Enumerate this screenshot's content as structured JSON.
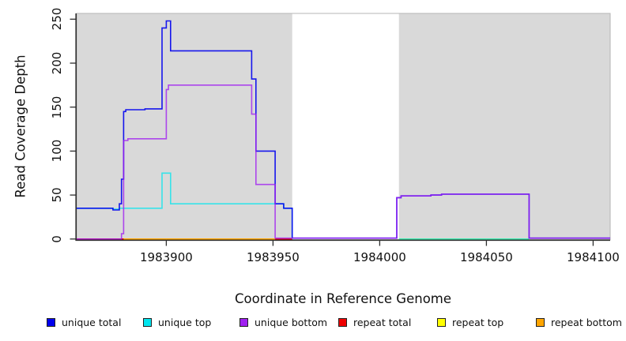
{
  "chart_data": {
    "type": "line",
    "interpolation": "step-after",
    "title": "",
    "xlabel": "Coordinate in Reference Genome",
    "ylabel": "Read Coverage Depth",
    "xlim": [
      1983858,
      1984108
    ],
    "ylim": [
      0,
      250
    ],
    "x_ticks": [
      1983900,
      1983950,
      1984000,
      1984050,
      1984100
    ],
    "y_ticks": [
      0,
      50,
      100,
      150,
      200,
      250
    ],
    "grid": false,
    "panel_bg": "#d9d9d9",
    "panel_border": "#b5b5b5",
    "axis_color": "#2f2f2f",
    "gap_region": {
      "x0": 1983959,
      "x1": 1984009,
      "color": "#ffffff"
    },
    "legend_position": "bottom",
    "legend": [
      {
        "label": "unique total",
        "color": "#0000EE"
      },
      {
        "label": "unique top",
        "color": "#00E5EE"
      },
      {
        "label": "unique bottom",
        "color": "#A020F0"
      },
      {
        "label": "repeat total",
        "color": "#EE0000"
      },
      {
        "label": "repeat top",
        "color": "#FFFF00"
      },
      {
        "label": "repeat bottom",
        "color": "#FFA500"
      }
    ],
    "series": [
      {
        "name": "repeat total",
        "color": "#EE0000",
        "opacity": 1,
        "segments": [
          [
            [
              1983858,
              0
            ],
            [
              1983959,
              0
            ]
          ]
        ]
      },
      {
        "name": "repeat top",
        "color": "#FFFF00",
        "opacity": 1,
        "segments": [
          [
            [
              1984009,
              0
            ],
            [
              1984070,
              0
            ]
          ]
        ]
      },
      {
        "name": "repeat bottom",
        "color": "#FFA500",
        "opacity": 1,
        "segments": [
          [
            [
              1983880,
              0
            ],
            [
              1983951,
              0
            ]
          ]
        ]
      },
      {
        "name": "unique top",
        "color": "#00E5EE",
        "opacity": 0.75,
        "segments": [
          [
            [
              1983858,
              35
            ],
            [
              1983875,
              34
            ],
            [
              1983878,
              35
            ],
            [
              1983898,
              75
            ],
            [
              1983902,
              40
            ],
            [
              1983955,
              35
            ],
            [
              1983959,
              0
            ]
          ],
          [
            [
              1984009,
              0
            ],
            [
              1984070,
              0
            ]
          ]
        ]
      },
      {
        "name": "unique total",
        "color": "#0000EE",
        "opacity": 0.9,
        "segments": [
          [
            [
              1983858,
              35
            ],
            [
              1983875,
              33
            ],
            [
              1983878,
              40
            ],
            [
              1983879,
              68
            ],
            [
              1983880,
              145
            ],
            [
              1983881,
              147
            ],
            [
              1983890,
              148
            ],
            [
              1983898,
              240
            ],
            [
              1983900,
              248
            ],
            [
              1983902,
              214
            ],
            [
              1983940,
              182
            ],
            [
              1983942,
              100
            ],
            [
              1983951,
              40
            ],
            [
              1983955,
              35
            ],
            [
              1983959,
              1
            ],
            [
              1984008,
              47
            ],
            [
              1984010,
              49
            ],
            [
              1984024,
              50
            ],
            [
              1984029,
              51
            ],
            [
              1984070,
              1
            ],
            [
              1984108,
              1
            ]
          ]
        ]
      },
      {
        "name": "unique bottom",
        "color": "#A020F0",
        "opacity": 0.8,
        "segments": [
          [
            [
              1983858,
              0
            ],
            [
              1983879,
              6
            ],
            [
              1983880,
              112
            ],
            [
              1983882,
              114
            ],
            [
              1983900,
              170
            ],
            [
              1983901,
              175
            ],
            [
              1983940,
              142
            ],
            [
              1983942,
              62
            ],
            [
              1983951,
              1
            ],
            [
              1984008,
              47
            ],
            [
              1984010,
              49
            ],
            [
              1984024,
              50
            ],
            [
              1984029,
              51
            ],
            [
              1984070,
              1
            ],
            [
              1984108,
              1
            ]
          ]
        ]
      }
    ]
  }
}
